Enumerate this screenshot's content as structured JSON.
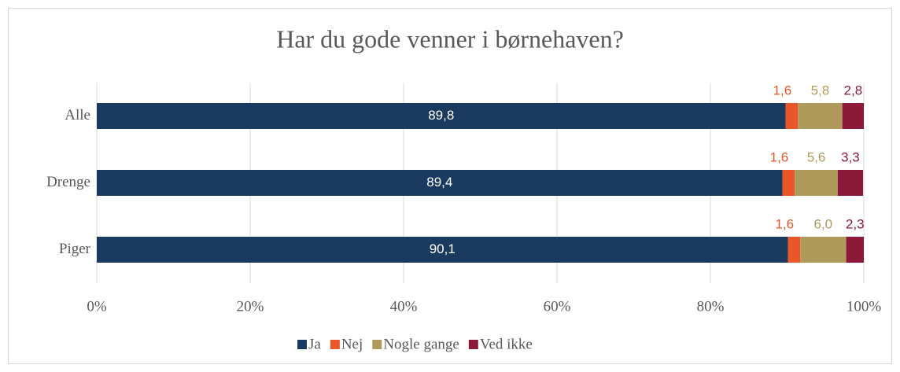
{
  "chart_data": {
    "type": "stacked_bar_horizontal",
    "title": "Har du gode venner i børnehaven?",
    "categories": [
      "Alle",
      "Drenge",
      "Piger"
    ],
    "series": [
      {
        "name": "Ja",
        "color": "#1b3a5f",
        "values": [
          89.8,
          89.4,
          90.1
        ],
        "value_labels": [
          "89,8",
          "89,4",
          "90,1"
        ]
      },
      {
        "name": "Nej",
        "color": "#e8562a",
        "values": [
          1.6,
          1.6,
          1.6
        ],
        "value_labels": [
          "1,6",
          "1,6",
          "1,6"
        ]
      },
      {
        "name": "Nogle gange",
        "color": "#b09a5b",
        "values": [
          5.8,
          5.6,
          6.0
        ],
        "value_labels": [
          "5,8",
          "5,6",
          "6,0"
        ]
      },
      {
        "name": "Ved ikke",
        "color": "#8b1a3a",
        "values": [
          2.8,
          3.3,
          2.3
        ],
        "value_labels": [
          "2,8",
          "3,3",
          "2,3"
        ]
      }
    ],
    "xlim": [
      0,
      100
    ],
    "xticks": [
      {
        "value": 0,
        "label": "0%"
      },
      {
        "value": 20,
        "label": "20%"
      },
      {
        "value": 40,
        "label": "40%"
      },
      {
        "value": 60,
        "label": "60%"
      },
      {
        "value": 80,
        "label": "80%"
      },
      {
        "value": 100,
        "label": "100%"
      }
    ],
    "grid": true,
    "legend": "bottom"
  }
}
